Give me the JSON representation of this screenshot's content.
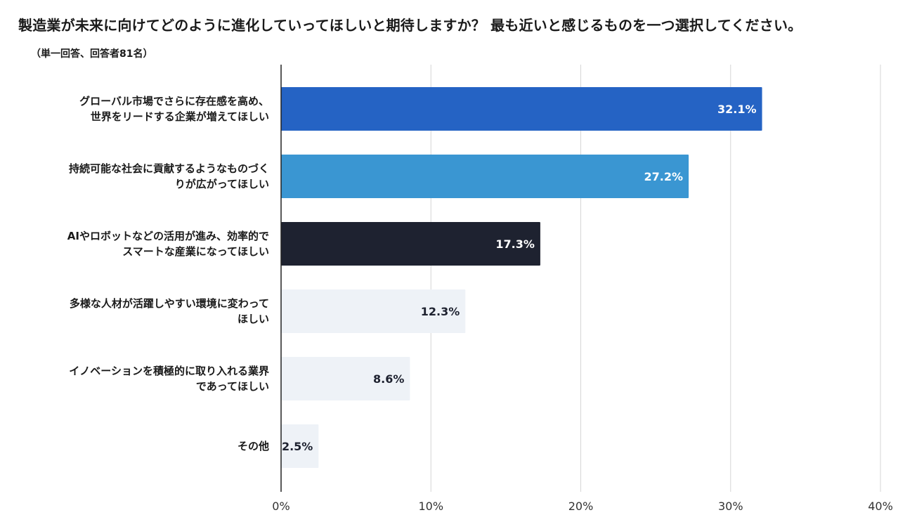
{
  "title": "製造業が未来に向けてどのように進化していってほしいと期待しますか？ 最も近いと感じるものを一つ選択してください。",
  "subtitle": "（単一回答、回答者81名）",
  "chart_data": {
    "type": "bar",
    "orientation": "horizontal",
    "xlim": [
      0,
      40
    ],
    "xticks": [
      "0%",
      "10%",
      "20%",
      "30%",
      "40%"
    ],
    "grid": true,
    "categories": [
      [
        "グローバル市場でさらに存在感を高め、",
        "世界をリードする企業が増えてほしい"
      ],
      [
        "持続可能な社会に貢献するようなものづく",
        "りが広がってほしい"
      ],
      [
        "AIやロボットなどの活用が進み、効率的で",
        "スマートな産業になってほしい"
      ],
      [
        "多様な人材が活躍しやすい環境に変わって",
        "ほしい"
      ],
      [
        "イノベーションを積極的に取り入れる業界",
        "であってほしい"
      ],
      [
        "その他"
      ]
    ],
    "values": [
      32.1,
      27.2,
      17.3,
      12.3,
      8.6,
      2.5
    ],
    "value_labels": [
      "32.1%",
      "27.2%",
      "17.3%",
      "12.3%",
      "8.6%",
      "2.5%"
    ],
    "colors": [
      "#2563c4",
      "#3a96d2",
      "#1e2230",
      "#eef2f7",
      "#eef2f7",
      "#eef2f7"
    ],
    "label_colors": [
      "#ffffff",
      "#ffffff",
      "#ffffff",
      "#1e2230",
      "#1e2230",
      "#1e2230"
    ]
  }
}
